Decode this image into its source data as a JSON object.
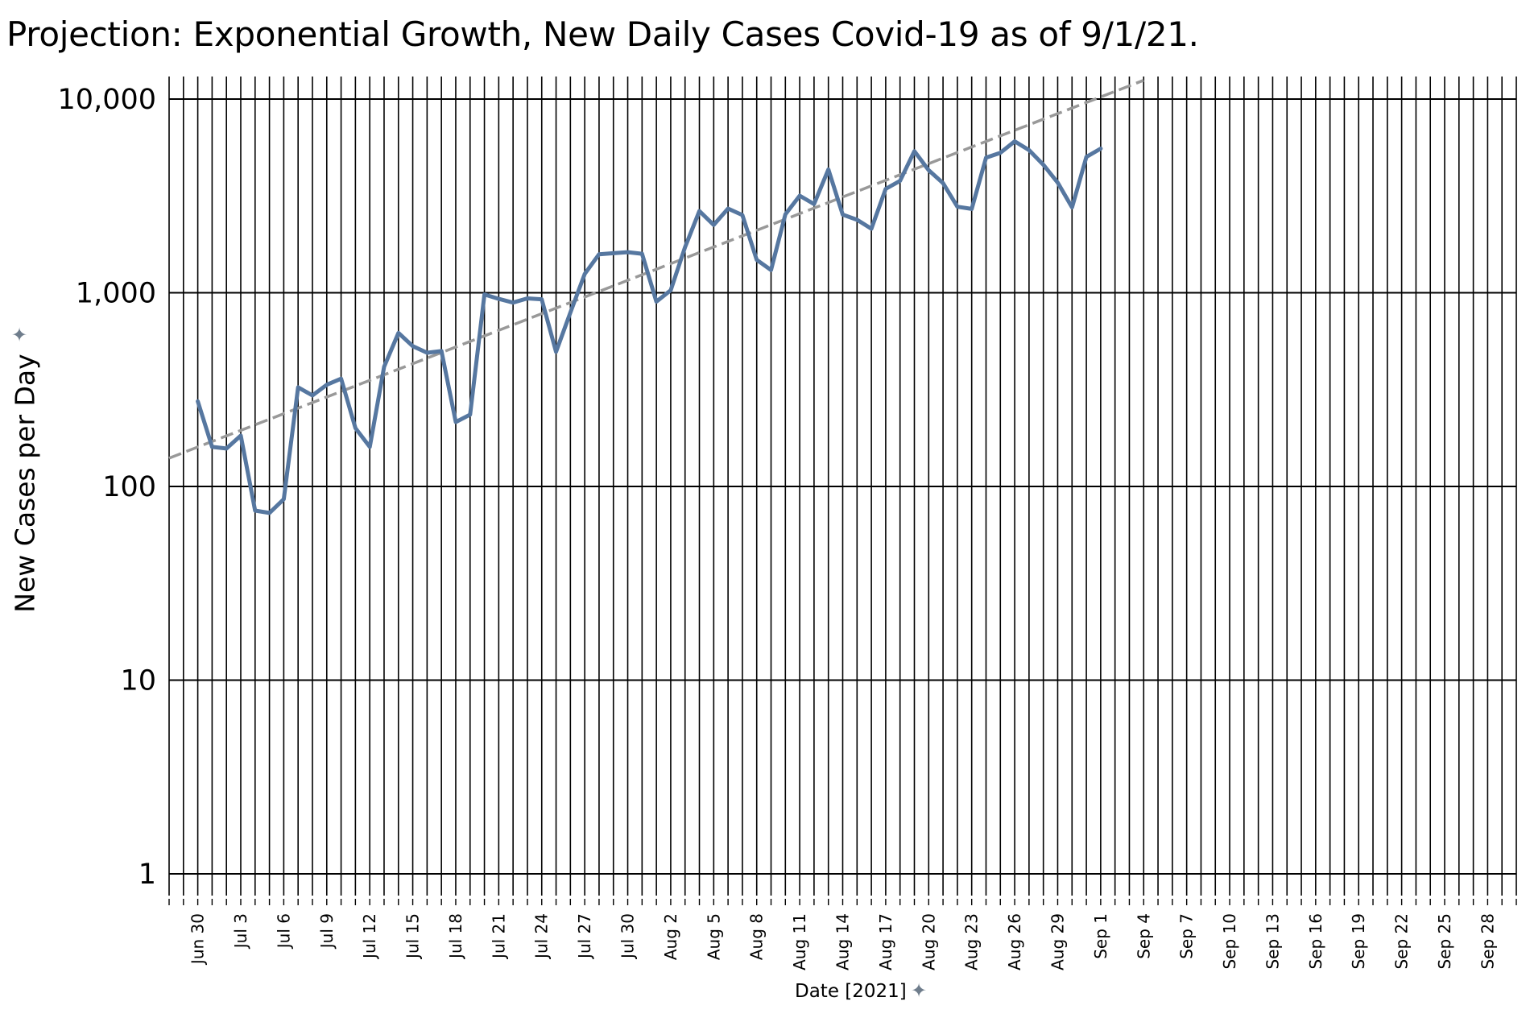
{
  "chart_data": {
    "type": "line",
    "title": "Projection: Exponential Growth,  New Daily Cases Covid-19 as of 9/1/21.",
    "xlabel": "Date [2021]",
    "ylabel": "New Cases per Day",
    "y_scale": "log",
    "ylim": [
      1,
      10000
    ],
    "xlim": [
      "2021-06-28",
      "2021-09-30"
    ],
    "grid": {
      "vertical_daily": true,
      "horizontal_decades": true
    },
    "y_ticks": [
      {
        "value": 10000,
        "label": "10,000"
      },
      {
        "value": 1000,
        "label": "1,000"
      },
      {
        "value": 100,
        "label": "100"
      },
      {
        "value": 10,
        "label": "10"
      },
      {
        "value": 1,
        "label": "1"
      }
    ],
    "x_ticks": [
      {
        "date": "2021-06-30",
        "label": "Jun 30"
      },
      {
        "date": "2021-07-03",
        "label": "Jul 3"
      },
      {
        "date": "2021-07-06",
        "label": "Jul 6"
      },
      {
        "date": "2021-07-09",
        "label": "Jul 9"
      },
      {
        "date": "2021-07-12",
        "label": "Jul 12"
      },
      {
        "date": "2021-07-15",
        "label": "Jul 15"
      },
      {
        "date": "2021-07-18",
        "label": "Jul 18"
      },
      {
        "date": "2021-07-21",
        "label": "Jul 21"
      },
      {
        "date": "2021-07-24",
        "label": "Jul 24"
      },
      {
        "date": "2021-07-27",
        "label": "Jul 27"
      },
      {
        "date": "2021-07-30",
        "label": "Jul 30"
      },
      {
        "date": "2021-08-02",
        "label": "Aug 2"
      },
      {
        "date": "2021-08-05",
        "label": "Aug 5"
      },
      {
        "date": "2021-08-08",
        "label": "Aug 8"
      },
      {
        "date": "2021-08-11",
        "label": "Aug 11"
      },
      {
        "date": "2021-08-14",
        "label": "Aug 14"
      },
      {
        "date": "2021-08-17",
        "label": "Aug 17"
      },
      {
        "date": "2021-08-20",
        "label": "Aug 20"
      },
      {
        "date": "2021-08-23",
        "label": "Aug 23"
      },
      {
        "date": "2021-08-26",
        "label": "Aug 26"
      },
      {
        "date": "2021-08-29",
        "label": "Aug 29"
      },
      {
        "date": "2021-09-01",
        "label": "Sep 1"
      },
      {
        "date": "2021-09-04",
        "label": "Sep 4"
      },
      {
        "date": "2021-09-07",
        "label": "Sep 7"
      },
      {
        "date": "2021-09-10",
        "label": "Sep 10"
      },
      {
        "date": "2021-09-13",
        "label": "Sep 13"
      },
      {
        "date": "2021-09-16",
        "label": "Sep 16"
      },
      {
        "date": "2021-09-19",
        "label": "Sep 19"
      },
      {
        "date": "2021-09-22",
        "label": "Sep 22"
      },
      {
        "date": "2021-09-25",
        "label": "Sep 25"
      },
      {
        "date": "2021-09-28",
        "label": "Sep 28"
      }
    ],
    "series": [
      {
        "color": "#5677a0",
        "points": [
          [
            "2021-06-30",
            275
          ],
          [
            "2021-07-01",
            160
          ],
          [
            "2021-07-02",
            157
          ],
          [
            "2021-07-03",
            183
          ],
          [
            "2021-07-04",
            75
          ],
          [
            "2021-07-05",
            73
          ],
          [
            "2021-07-06",
            86
          ],
          [
            "2021-07-07",
            325
          ],
          [
            "2021-07-08",
            295
          ],
          [
            "2021-07-09",
            335
          ],
          [
            "2021-07-10",
            360
          ],
          [
            "2021-07-11",
            200
          ],
          [
            "2021-07-12",
            160
          ],
          [
            "2021-07-13",
            415
          ],
          [
            "2021-07-14",
            620
          ],
          [
            "2021-07-15",
            530
          ],
          [
            "2021-07-16",
            490
          ],
          [
            "2021-07-17",
            500
          ],
          [
            "2021-07-18",
            215
          ],
          [
            "2021-07-19",
            235
          ],
          [
            "2021-07-20",
            980
          ],
          [
            "2021-07-21",
            930
          ],
          [
            "2021-07-22",
            890
          ],
          [
            "2021-07-23",
            935
          ],
          [
            "2021-07-24",
            925
          ],
          [
            "2021-07-25",
            495
          ],
          [
            "2021-07-26",
            790
          ],
          [
            "2021-07-27",
            1250
          ],
          [
            "2021-07-28",
            1580
          ],
          [
            "2021-07-29",
            1600
          ],
          [
            "2021-07-30",
            1620
          ],
          [
            "2021-07-31",
            1590
          ],
          [
            "2021-08-01",
            900
          ],
          [
            "2021-08-02",
            1030
          ],
          [
            "2021-08-03",
            1720
          ],
          [
            "2021-08-04",
            2640
          ],
          [
            "2021-08-05",
            2240
          ],
          [
            "2021-08-06",
            2720
          ],
          [
            "2021-08-07",
            2520
          ],
          [
            "2021-08-08",
            1480
          ],
          [
            "2021-08-09",
            1310
          ],
          [
            "2021-08-10",
            2540
          ],
          [
            "2021-08-11",
            3170
          ],
          [
            "2021-08-12",
            2870
          ],
          [
            "2021-08-13",
            4330
          ],
          [
            "2021-08-14",
            2530
          ],
          [
            "2021-08-15",
            2380
          ],
          [
            "2021-08-16",
            2140
          ],
          [
            "2021-08-17",
            3440
          ],
          [
            "2021-08-18",
            3780
          ],
          [
            "2021-08-19",
            5380
          ],
          [
            "2021-08-20",
            4290
          ],
          [
            "2021-08-21",
            3680
          ],
          [
            "2021-08-22",
            2780
          ],
          [
            "2021-08-23",
            2710
          ],
          [
            "2021-08-24",
            4980
          ],
          [
            "2021-08-25",
            5280
          ],
          [
            "2021-08-26",
            6050
          ],
          [
            "2021-08-27",
            5450
          ],
          [
            "2021-08-28",
            4580
          ],
          [
            "2021-08-29",
            3700
          ],
          [
            "2021-08-30",
            2760
          ],
          [
            "2021-08-31",
            5030
          ],
          [
            "2021-09-01",
            5550
          ]
        ]
      }
    ],
    "trendline": {
      "style": "dashed",
      "color": "#999999",
      "points": [
        [
          "2021-06-28",
          140
        ],
        [
          "2021-09-04",
          12500
        ]
      ]
    }
  }
}
